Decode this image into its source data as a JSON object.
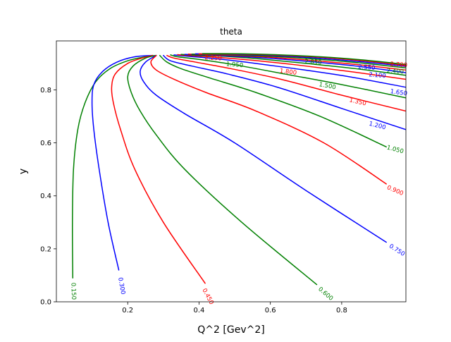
{
  "chart_data": {
    "type": "contour",
    "title": "theta",
    "xlabel": "Q^2 [Gev^2]",
    "ylabel": "y",
    "xlim": [
      0.0,
      0.98
    ],
    "ylim": [
      0.0,
      0.985
    ],
    "x_ticks": [
      0.2,
      0.4,
      0.6,
      0.8
    ],
    "x_tick_labels": [
      "0.2",
      "0.4",
      "0.6",
      "0.8"
    ],
    "y_ticks": [
      0.0,
      0.2,
      0.4,
      0.6,
      0.8
    ],
    "y_tick_labels": [
      "0.0",
      "0.2",
      "0.4",
      "0.6",
      "0.8"
    ],
    "grid": false,
    "colors": [
      "#008000",
      "#0000ff",
      "#ff0000"
    ],
    "series": [
      {
        "label": "0.150",
        "color": "#008000",
        "x": [
          0.046,
          0.045,
          0.048,
          0.06,
          0.08,
          0.11,
          0.15,
          0.2,
          0.25,
          0.28
        ],
        "y": [
          0.09,
          0.3,
          0.5,
          0.65,
          0.75,
          0.83,
          0.88,
          0.91,
          0.925,
          0.93
        ]
      },
      {
        "label": "0.300",
        "color": "#0000ff",
        "x": [
          0.175,
          0.145,
          0.12,
          0.105,
          0.1,
          0.105,
          0.13,
          0.17,
          0.22,
          0.27
        ],
        "y": [
          0.12,
          0.3,
          0.5,
          0.65,
          0.75,
          0.82,
          0.87,
          0.905,
          0.925,
          0.93
        ]
      },
      {
        "label": "0.450",
        "color": "#ff0000",
        "x": [
          0.417,
          0.3,
          0.22,
          0.18,
          0.16,
          0.155,
          0.165,
          0.2,
          0.24,
          0.27
        ],
        "y": [
          0.07,
          0.3,
          0.5,
          0.65,
          0.75,
          0.81,
          0.86,
          0.9,
          0.92,
          0.93
        ]
      },
      {
        "label": "0.600",
        "color": "#008000",
        "x": [
          0.73,
          0.52,
          0.36,
          0.28,
          0.235,
          0.21,
          0.2,
          0.215,
          0.25,
          0.28
        ],
        "y": [
          0.065,
          0.3,
          0.5,
          0.63,
          0.72,
          0.79,
          0.85,
          0.89,
          0.92,
          0.93
        ]
      },
      {
        "label": "0.750",
        "color": "#0000ff",
        "x": [
          0.925,
          0.7,
          0.5,
          0.36,
          0.28,
          0.245,
          0.235,
          0.25,
          0.28
        ],
        "y": [
          0.225,
          0.42,
          0.6,
          0.71,
          0.78,
          0.83,
          0.87,
          0.905,
          0.93
        ]
      },
      {
        "label": "0.900",
        "color": "#ff0000",
        "x": [
          0.925,
          0.75,
          0.56,
          0.42,
          0.33,
          0.28,
          0.265,
          0.28
        ],
        "y": [
          0.445,
          0.6,
          0.72,
          0.79,
          0.84,
          0.875,
          0.905,
          0.93
        ]
      },
      {
        "label": "1.050",
        "color": "#008000",
        "x": [
          0.925,
          0.74,
          0.56,
          0.43,
          0.35,
          0.31,
          0.29
        ],
        "y": [
          0.585,
          0.7,
          0.79,
          0.845,
          0.88,
          0.905,
          0.93
        ]
      },
      {
        "label": "1.200",
        "color": "#0000ff",
        "x": [
          0.98,
          0.8,
          0.62,
          0.48,
          0.38,
          0.32,
          0.3
        ],
        "y": [
          0.65,
          0.73,
          0.81,
          0.86,
          0.89,
          0.91,
          0.93
        ]
      },
      {
        "label": "1.350",
        "color": "#ff0000",
        "x": [
          0.98,
          0.8,
          0.63,
          0.49,
          0.39,
          0.33,
          0.31
        ],
        "y": [
          0.72,
          0.78,
          0.84,
          0.88,
          0.905,
          0.92,
          0.93
        ]
      },
      {
        "label": "1.500",
        "color": "#008000",
        "x": [
          0.98,
          0.8,
          0.64,
          0.5,
          0.4,
          0.34,
          0.32
        ],
        "y": [
          0.77,
          0.82,
          0.86,
          0.895,
          0.915,
          0.925,
          0.932
        ]
      },
      {
        "label": "1.650",
        "color": "#0000ff",
        "x": [
          0.98,
          0.82,
          0.67,
          0.53,
          0.43,
          0.36,
          0.33
        ],
        "y": [
          0.81,
          0.85,
          0.88,
          0.905,
          0.92,
          0.928,
          0.932
        ]
      },
      {
        "label": "1.800",
        "color": "#ff0000",
        "x": [
          0.98,
          0.82,
          0.67,
          0.54,
          0.44,
          0.37,
          0.34
        ],
        "y": [
          0.84,
          0.87,
          0.895,
          0.913,
          0.924,
          0.93,
          0.933
        ]
      },
      {
        "label": "1.950",
        "color": "#008000",
        "x": [
          0.98,
          0.84,
          0.7,
          0.57,
          0.47,
          0.39,
          0.35
        ],
        "y": [
          0.855,
          0.88,
          0.9,
          0.917,
          0.927,
          0.931,
          0.934
        ]
      },
      {
        "label": "2.100",
        "color": "#0000ff",
        "x": [
          0.98,
          0.84,
          0.7,
          0.57,
          0.47,
          0.4,
          0.36
        ],
        "y": [
          0.865,
          0.89,
          0.908,
          0.922,
          0.929,
          0.933,
          0.934
        ]
      },
      {
        "label": "2.250",
        "color": "#ff0000",
        "x": [
          0.98,
          0.84,
          0.7,
          0.58,
          0.48,
          0.41,
          0.37
        ],
        "y": [
          0.875,
          0.896,
          0.913,
          0.925,
          0.931,
          0.934,
          0.935
        ]
      },
      {
        "label": "2.400",
        "color": "#008000",
        "x": [
          0.98,
          0.85,
          0.72,
          0.6,
          0.5,
          0.42,
          0.38
        ],
        "y": [
          0.883,
          0.902,
          0.917,
          0.927,
          0.932,
          0.935,
          0.935
        ]
      },
      {
        "label": "2.550",
        "color": "#0000ff",
        "x": [
          0.98,
          0.85,
          0.72,
          0.6,
          0.5,
          0.43,
          0.39
        ],
        "y": [
          0.889,
          0.907,
          0.921,
          0.93,
          0.934,
          0.936,
          0.936
        ]
      },
      {
        "label": "2.700",
        "color": "#ff0000",
        "x": [
          0.98,
          0.86,
          0.74,
          0.62,
          0.52,
          0.44,
          0.4
        ],
        "y": [
          0.893,
          0.91,
          0.923,
          0.931,
          0.935,
          0.936,
          0.936
        ]
      },
      {
        "label": "2.850",
        "color": "#008000",
        "x": [
          0.98,
          0.86,
          0.74,
          0.63,
          0.53,
          0.45,
          0.41
        ],
        "y": [
          0.896,
          0.913,
          0.925,
          0.932,
          0.936,
          0.937,
          0.937
        ]
      }
    ],
    "contour_labels": [
      {
        "text": "0.150",
        "color": "#008000",
        "x": 0.048,
        "y": 0.04,
        "angle": 88
      },
      {
        "text": "0.300",
        "color": "#0000ff",
        "x": 0.183,
        "y": 0.06,
        "angle": 80
      },
      {
        "text": "0.450",
        "color": "#ff0000",
        "x": 0.425,
        "y": 0.02,
        "angle": 62
      },
      {
        "text": "0.600",
        "color": "#008000",
        "x": 0.755,
        "y": 0.03,
        "angle": 40
      },
      {
        "text": "0.750",
        "color": "#0000ff",
        "x": 0.955,
        "y": 0.195,
        "angle": 32
      },
      {
        "text": "0.900",
        "color": "#ff0000",
        "x": 0.95,
        "y": 0.42,
        "angle": 23
      },
      {
        "text": "1.050",
        "color": "#008000",
        "x": 0.95,
        "y": 0.575,
        "angle": 15
      },
      {
        "text": "1.200",
        "color": "#0000ff",
        "x": 0.9,
        "y": 0.665,
        "angle": 14
      },
      {
        "text": "1.350",
        "color": "#ff0000",
        "x": 0.845,
        "y": 0.755,
        "angle": 13
      },
      {
        "text": "1.500",
        "color": "#008000",
        "x": 0.76,
        "y": 0.815,
        "angle": 11
      },
      {
        "text": "1.650",
        "color": "#0000ff",
        "x": 0.96,
        "y": 0.79,
        "angle": 8
      },
      {
        "text": "1.800",
        "color": "#ff0000",
        "x": 0.65,
        "y": 0.868,
        "angle": 7
      },
      {
        "text": "1.950",
        "color": "#008000",
        "x": 0.5,
        "y": 0.895,
        "angle": 5
      },
      {
        "text": "2.100",
        "color": "#0000ff",
        "x": 0.9,
        "y": 0.855,
        "angle": 5
      },
      {
        "text": "2.250",
        "color": "#ff0000",
        "x": 0.44,
        "y": 0.92,
        "angle": 3
      },
      {
        "text": "2.400",
        "color": "#008000",
        "x": 0.95,
        "y": 0.87,
        "angle": 4
      },
      {
        "text": "2.550",
        "color": "#0000ff",
        "x": 0.87,
        "y": 0.885,
        "angle": 4
      },
      {
        "text": "2.700",
        "color": "#ff0000",
        "x": 0.96,
        "y": 0.895,
        "angle": 4
      },
      {
        "text": "2.850",
        "color": "#008000",
        "x": 0.72,
        "y": 0.905,
        "angle": 4
      }
    ]
  }
}
